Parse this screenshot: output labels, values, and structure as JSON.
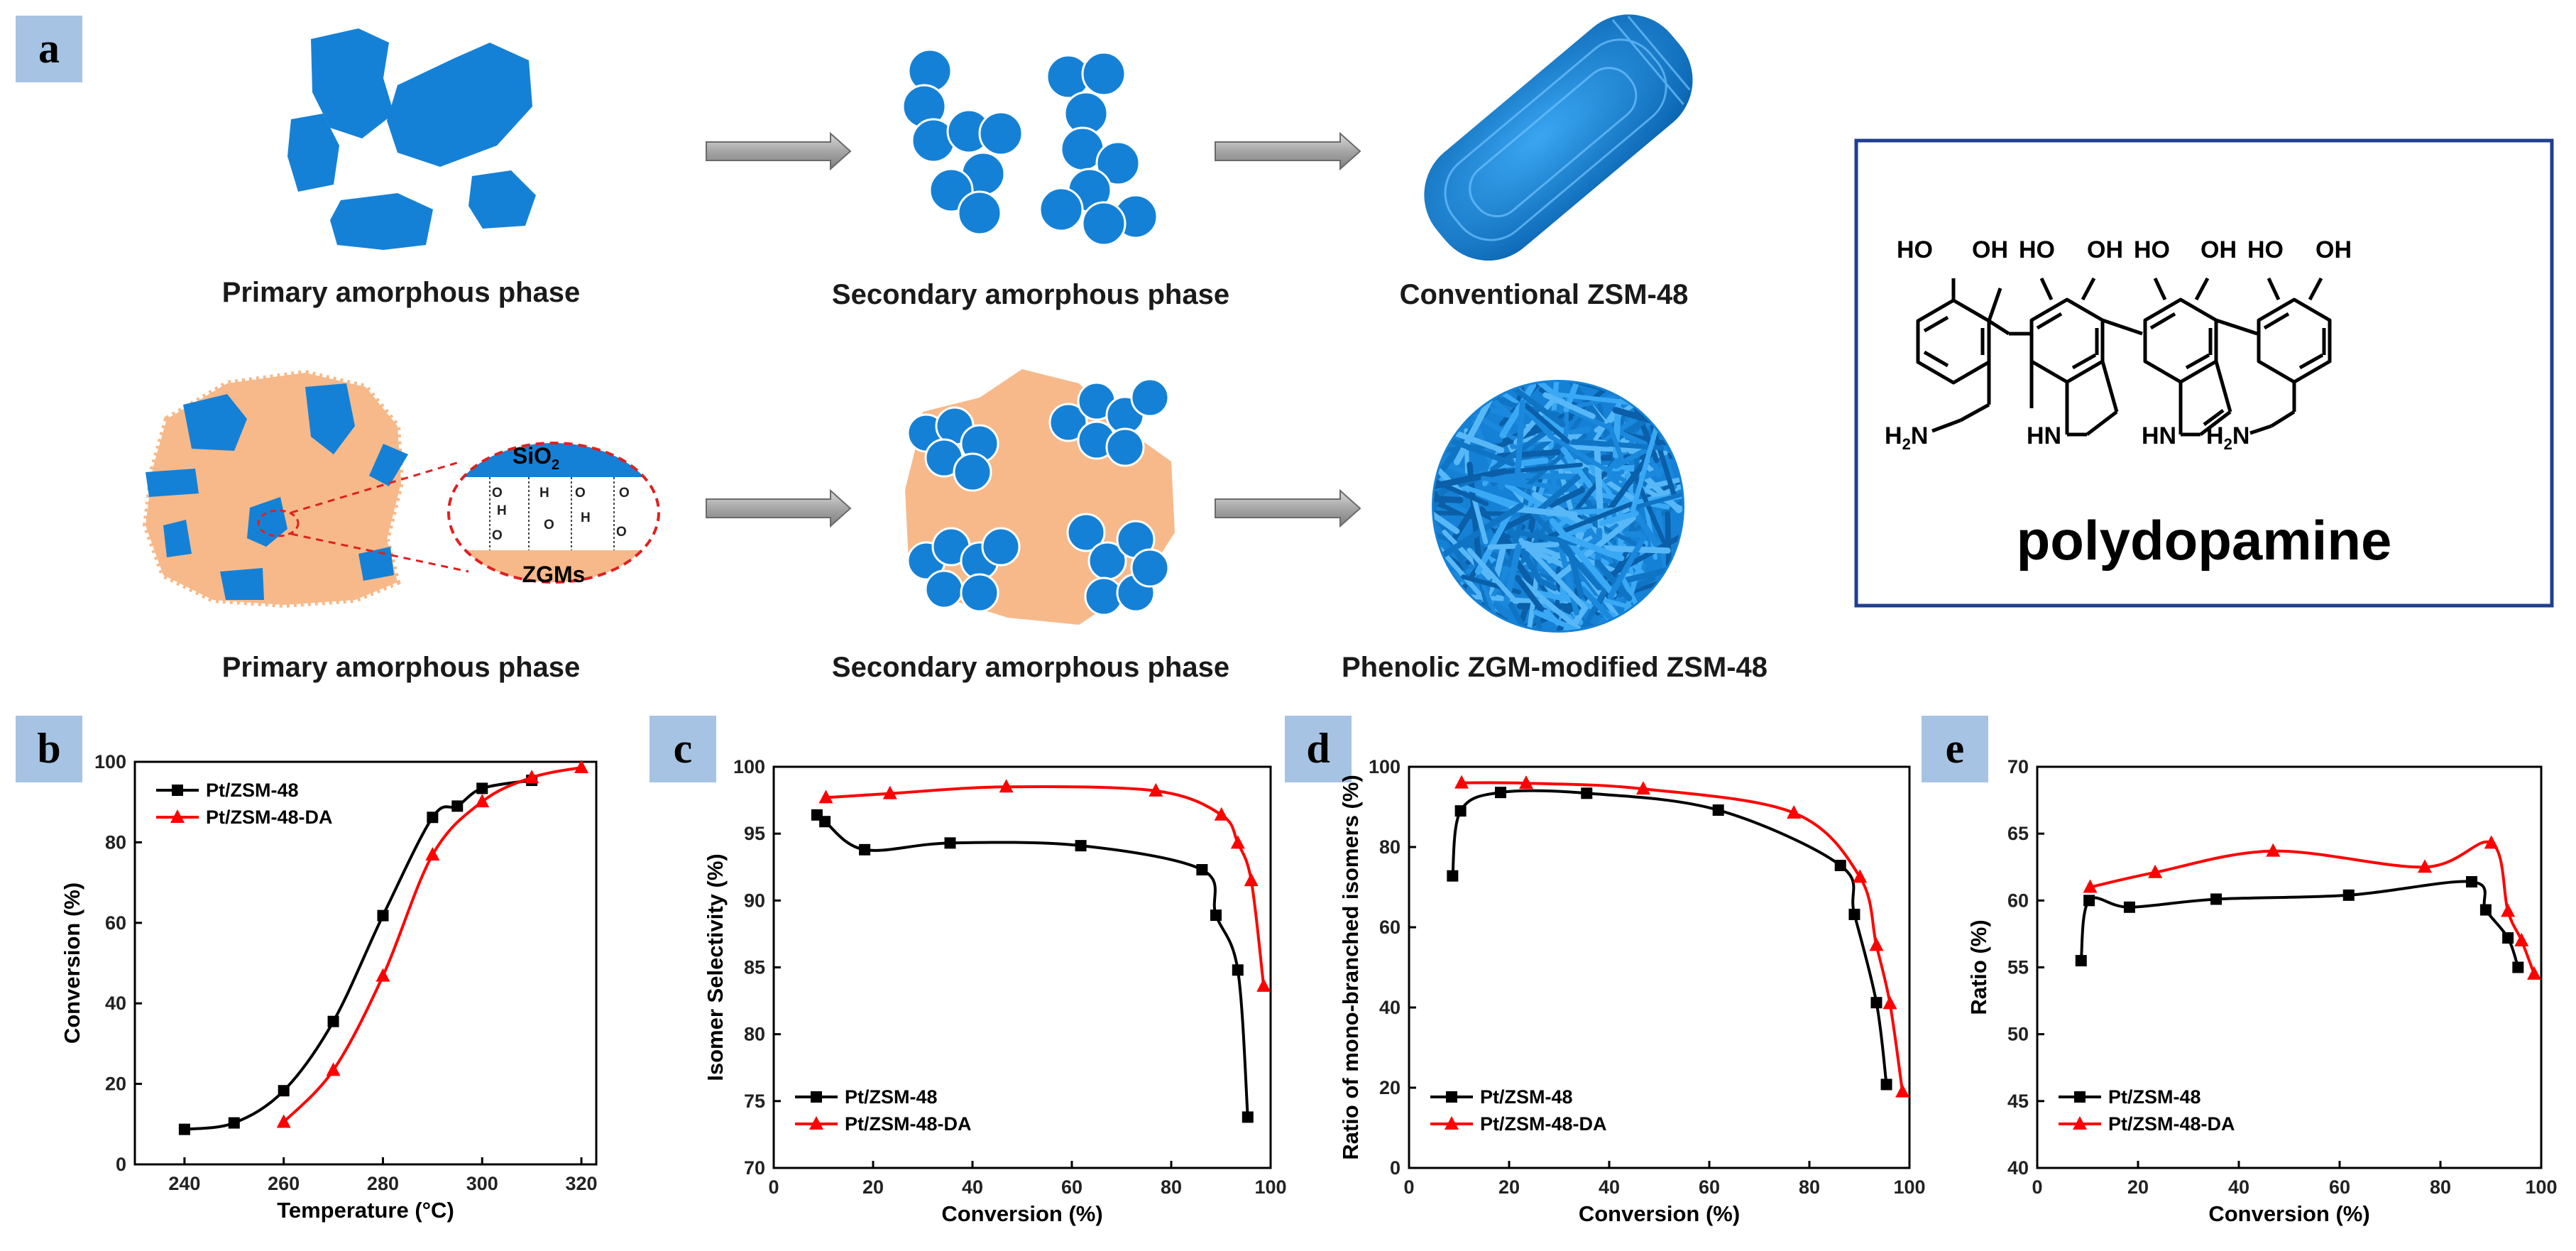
{
  "panels": {
    "a": {
      "letter": "a",
      "top_row": {
        "stage1": "Primary amorphous phase",
        "stage2": "Secondary amorphous phase",
        "stage3": "Conventional ZSM-48"
      },
      "bottom_row": {
        "stage1": "Primary amorphous phase",
        "stage2": "Secondary amorphous phase",
        "stage3": "Phenolic ZGM-modified ZSM-48"
      },
      "inset": {
        "sio2": "SiO",
        "sio2_sub": "2",
        "zgm": "ZGMs",
        "h": "H",
        "o": "O"
      },
      "molecule": {
        "name": "polydopamine",
        "ho": "HO",
        "oh": "OH",
        "h2n": "H",
        "h2n_sub": "2",
        "h2n_n": "N",
        "hn": "HN"
      }
    },
    "b": {
      "letter": "b"
    },
    "c": {
      "letter": "c"
    },
    "d": {
      "letter": "d"
    },
    "e": {
      "letter": "e"
    }
  },
  "colors": {
    "particle_blue": "#1581d6",
    "zgm_orange": "#f7b98a",
    "series_black": "#000000",
    "series_red": "#ff0000",
    "panel_label_bg": "#a7c3e3",
    "frame_blue": "#1f3f8f"
  },
  "chart_data": [
    {
      "id": "b",
      "type": "line",
      "xlabel": "Temperature (°C)",
      "ylabel": "Conversion (%)",
      "xlim": [
        230,
        323
      ],
      "ylim": [
        0,
        100
      ],
      "xticks": [
        240,
        260,
        280,
        300,
        320
      ],
      "yticks": [
        0,
        20,
        40,
        60,
        80,
        100
      ],
      "legend": "top-left",
      "series": [
        {
          "name": "Pt/ZSM-48",
          "color": "#000000",
          "marker": "square",
          "x": [
            240,
            250,
            260,
            270,
            280,
            290,
            295,
            300,
            310
          ],
          "y": [
            8.7,
            10.3,
            18.3,
            35.5,
            61.8,
            86.2,
            89.0,
            93.4,
            95.4
          ]
        },
        {
          "name": "Pt/ZSM-48-DA",
          "color": "#ff0000",
          "marker": "triangle",
          "x": [
            260,
            270,
            280,
            290,
            300,
            310,
            320
          ],
          "y": [
            10.5,
            23.4,
            46.8,
            76.9,
            90.1,
            96.1,
            98.6
          ]
        }
      ]
    },
    {
      "id": "c",
      "type": "line",
      "xlabel": "Conversion (%)",
      "ylabel": "Isomer Selectivity (%)",
      "xlim": [
        0,
        100
      ],
      "ylim": [
        70,
        100
      ],
      "xticks": [
        0,
        20,
        40,
        60,
        80,
        100
      ],
      "yticks": [
        70,
        75,
        80,
        85,
        90,
        95,
        100
      ],
      "legend": "bottom-left",
      "series": [
        {
          "name": "Pt/ZSM-48",
          "color": "#000000",
          "marker": "square",
          "x": [
            8.7,
            10.3,
            18.3,
            35.5,
            61.8,
            86.2,
            89.0,
            93.4,
            95.4
          ],
          "y": [
            96.4,
            95.9,
            93.8,
            94.3,
            94.1,
            92.3,
            88.9,
            84.8,
            73.8
          ]
        },
        {
          "name": "Pt/ZSM-48-DA",
          "color": "#ff0000",
          "marker": "triangle",
          "x": [
            10.5,
            23.4,
            46.8,
            76.9,
            90.1,
            93.4,
            96.1,
            98.6
          ],
          "y": [
            97.7,
            98.0,
            98.5,
            98.2,
            96.4,
            94.3,
            91.5,
            83.6
          ]
        }
      ]
    },
    {
      "id": "d",
      "type": "line",
      "xlabel": "Conversion (%)",
      "ylabel": "Ratio of mono-branched isomers (%)",
      "xlim": [
        0,
        100
      ],
      "ylim": [
        0,
        100
      ],
      "xticks": [
        0,
        20,
        40,
        60,
        80,
        100
      ],
      "yticks": [
        0,
        20,
        40,
        60,
        80,
        100
      ],
      "legend": "bottom-left",
      "series": [
        {
          "name": "Pt/ZSM-48",
          "color": "#000000",
          "marker": "square",
          "x": [
            8.7,
            10.3,
            18.3,
            35.5,
            61.8,
            86.2,
            89.0,
            93.4,
            95.4
          ],
          "y": [
            72.8,
            89.0,
            93.6,
            93.4,
            89.2,
            75.4,
            63.2,
            41.2,
            20.8
          ]
        },
        {
          "name": "Pt/ZSM-48-DA",
          "color": "#ff0000",
          "marker": "triangle",
          "x": [
            10.5,
            23.4,
            46.8,
            76.9,
            90.1,
            93.4,
            96.1,
            98.6
          ],
          "y": [
            96.0,
            95.9,
            94.5,
            88.5,
            72.5,
            55.5,
            41.0,
            19.0
          ]
        }
      ]
    },
    {
      "id": "e",
      "type": "line",
      "xlabel": "Conversion (%)",
      "ylabel": "Ratio (%)",
      "xlim": [
        0,
        100
      ],
      "ylim": [
        40,
        70
      ],
      "xticks": [
        0,
        20,
        40,
        60,
        80,
        100
      ],
      "yticks": [
        40,
        45,
        50,
        55,
        60,
        65,
        70
      ],
      "legend": "bottom-left",
      "series": [
        {
          "name": "Pt/ZSM-48",
          "color": "#000000",
          "marker": "square",
          "x": [
            8.7,
            10.3,
            18.3,
            35.5,
            61.8,
            86.2,
            89.0,
            93.4,
            95.4
          ],
          "y": [
            55.5,
            60.0,
            59.5,
            60.1,
            60.4,
            61.4,
            59.3,
            57.2,
            55.0
          ]
        },
        {
          "name": "Pt/ZSM-48-DA",
          "color": "#ff0000",
          "marker": "triangle",
          "x": [
            10.5,
            23.4,
            46.8,
            76.9,
            90.1,
            93.4,
            96.1,
            98.6
          ],
          "y": [
            61.0,
            62.1,
            63.7,
            62.5,
            64.3,
            59.2,
            57.0,
            54.5
          ]
        }
      ]
    }
  ]
}
